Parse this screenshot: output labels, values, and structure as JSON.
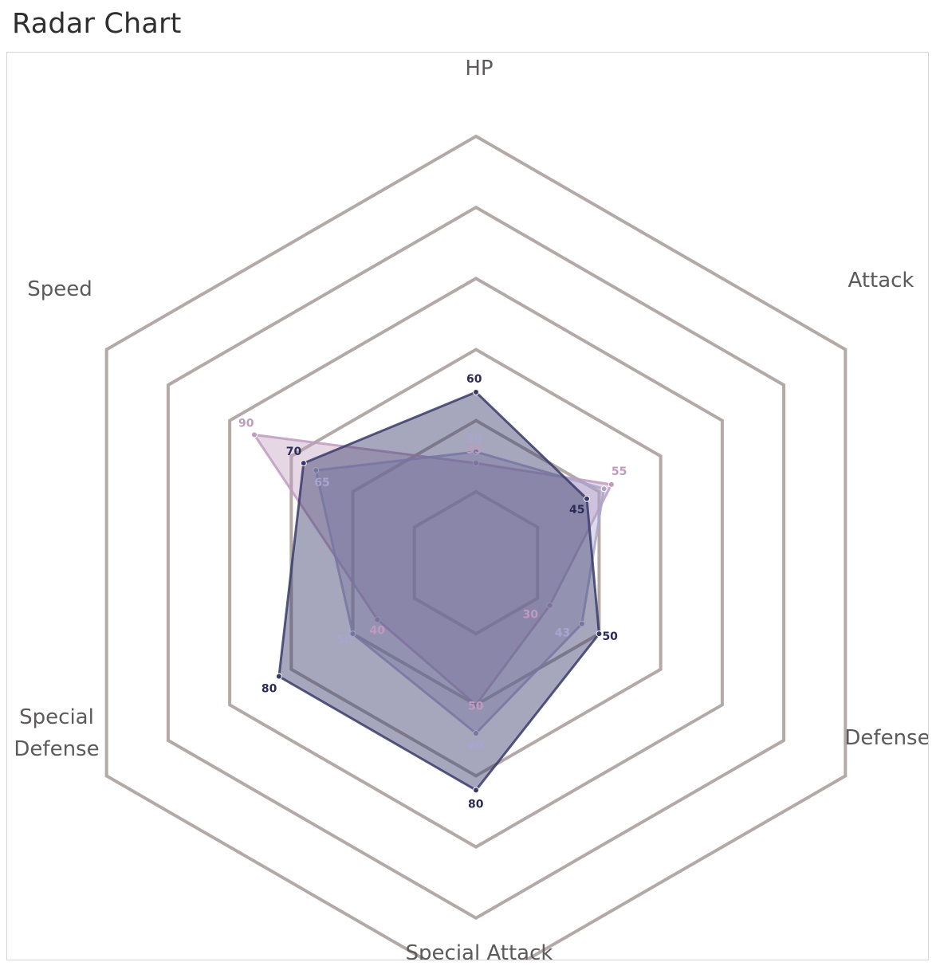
{
  "page": {
    "title": "Radar Chart"
  },
  "chart_data": {
    "type": "radar",
    "title": "",
    "axes": [
      "HP",
      "Attack",
      "Defense",
      "Special Attack",
      "Special Defense",
      "Speed"
    ],
    "axis_label_lines": [
      [
        "HP"
      ],
      [
        "Attack"
      ],
      [
        "Defense"
      ],
      [
        "Special Attack"
      ],
      [
        "Special",
        "Defense"
      ],
      [
        "Speed"
      ]
    ],
    "range": [
      0,
      150
    ],
    "grid_levels": [
      25,
      50,
      75,
      100,
      125,
      150
    ],
    "grid": true,
    "legend": "none",
    "series": [
      {
        "values": [
          35,
          55,
          30,
          50,
          40,
          90
        ],
        "color": "#c09bbf",
        "fill_opacity": 0.4,
        "label_color": "#c09bbf"
      },
      {
        "values": [
          39,
          52,
          43,
          60,
          50,
          65
        ],
        "color": "#a8a6cf",
        "fill_opacity": 0.4,
        "label_color": "#a8a6cf"
      },
      {
        "values": [
          60,
          45,
          50,
          80,
          80,
          70
        ],
        "color": "#3a3b6a",
        "fill_opacity": 0.45,
        "label_color": "#2b2c55"
      }
    ],
    "visible_labels": [
      [
        35,
        55,
        30,
        50,
        40,
        90
      ],
      [
        39,
        null,
        43,
        60,
        50,
        65
      ],
      [
        60,
        45,
        50,
        80,
        80,
        70
      ]
    ],
    "colors": {
      "grid": "#b3aaa7",
      "axis_text": "#5c5a5a",
      "inner_fill": "#8b8bad"
    }
  }
}
